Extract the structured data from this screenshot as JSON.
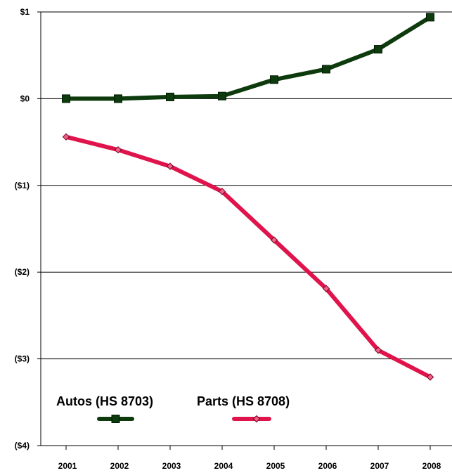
{
  "chart_data": {
    "type": "line",
    "categories": [
      "2001",
      "2002",
      "2003",
      "2004",
      "2005",
      "2006",
      "2007",
      "2008"
    ],
    "y_ticks": [
      {
        "value": 1,
        "label": "$1"
      },
      {
        "value": 0,
        "label": "$0"
      },
      {
        "value": -1,
        "label": "($1)"
      },
      {
        "value": -2,
        "label": "($2)"
      },
      {
        "value": -3,
        "label": "($3)"
      },
      {
        "value": -4,
        "label": "($4)"
      }
    ],
    "ylim": [
      -4,
      1
    ],
    "grid": true,
    "legend_position": "bottom-left",
    "series": [
      {
        "name": "Autos (HS 8703)",
        "color": "#0d3b0d",
        "marker": "square",
        "values": [
          0.0,
          0.0,
          0.02,
          0.03,
          0.22,
          0.34,
          0.57,
          0.94
        ]
      },
      {
        "name": "Parts (HS 8708)",
        "color": "#e0144c",
        "marker": "diamond",
        "values": [
          -0.44,
          -0.59,
          -0.78,
          -1.07,
          -1.63,
          -2.19,
          -2.9,
          -3.21
        ]
      }
    ]
  }
}
